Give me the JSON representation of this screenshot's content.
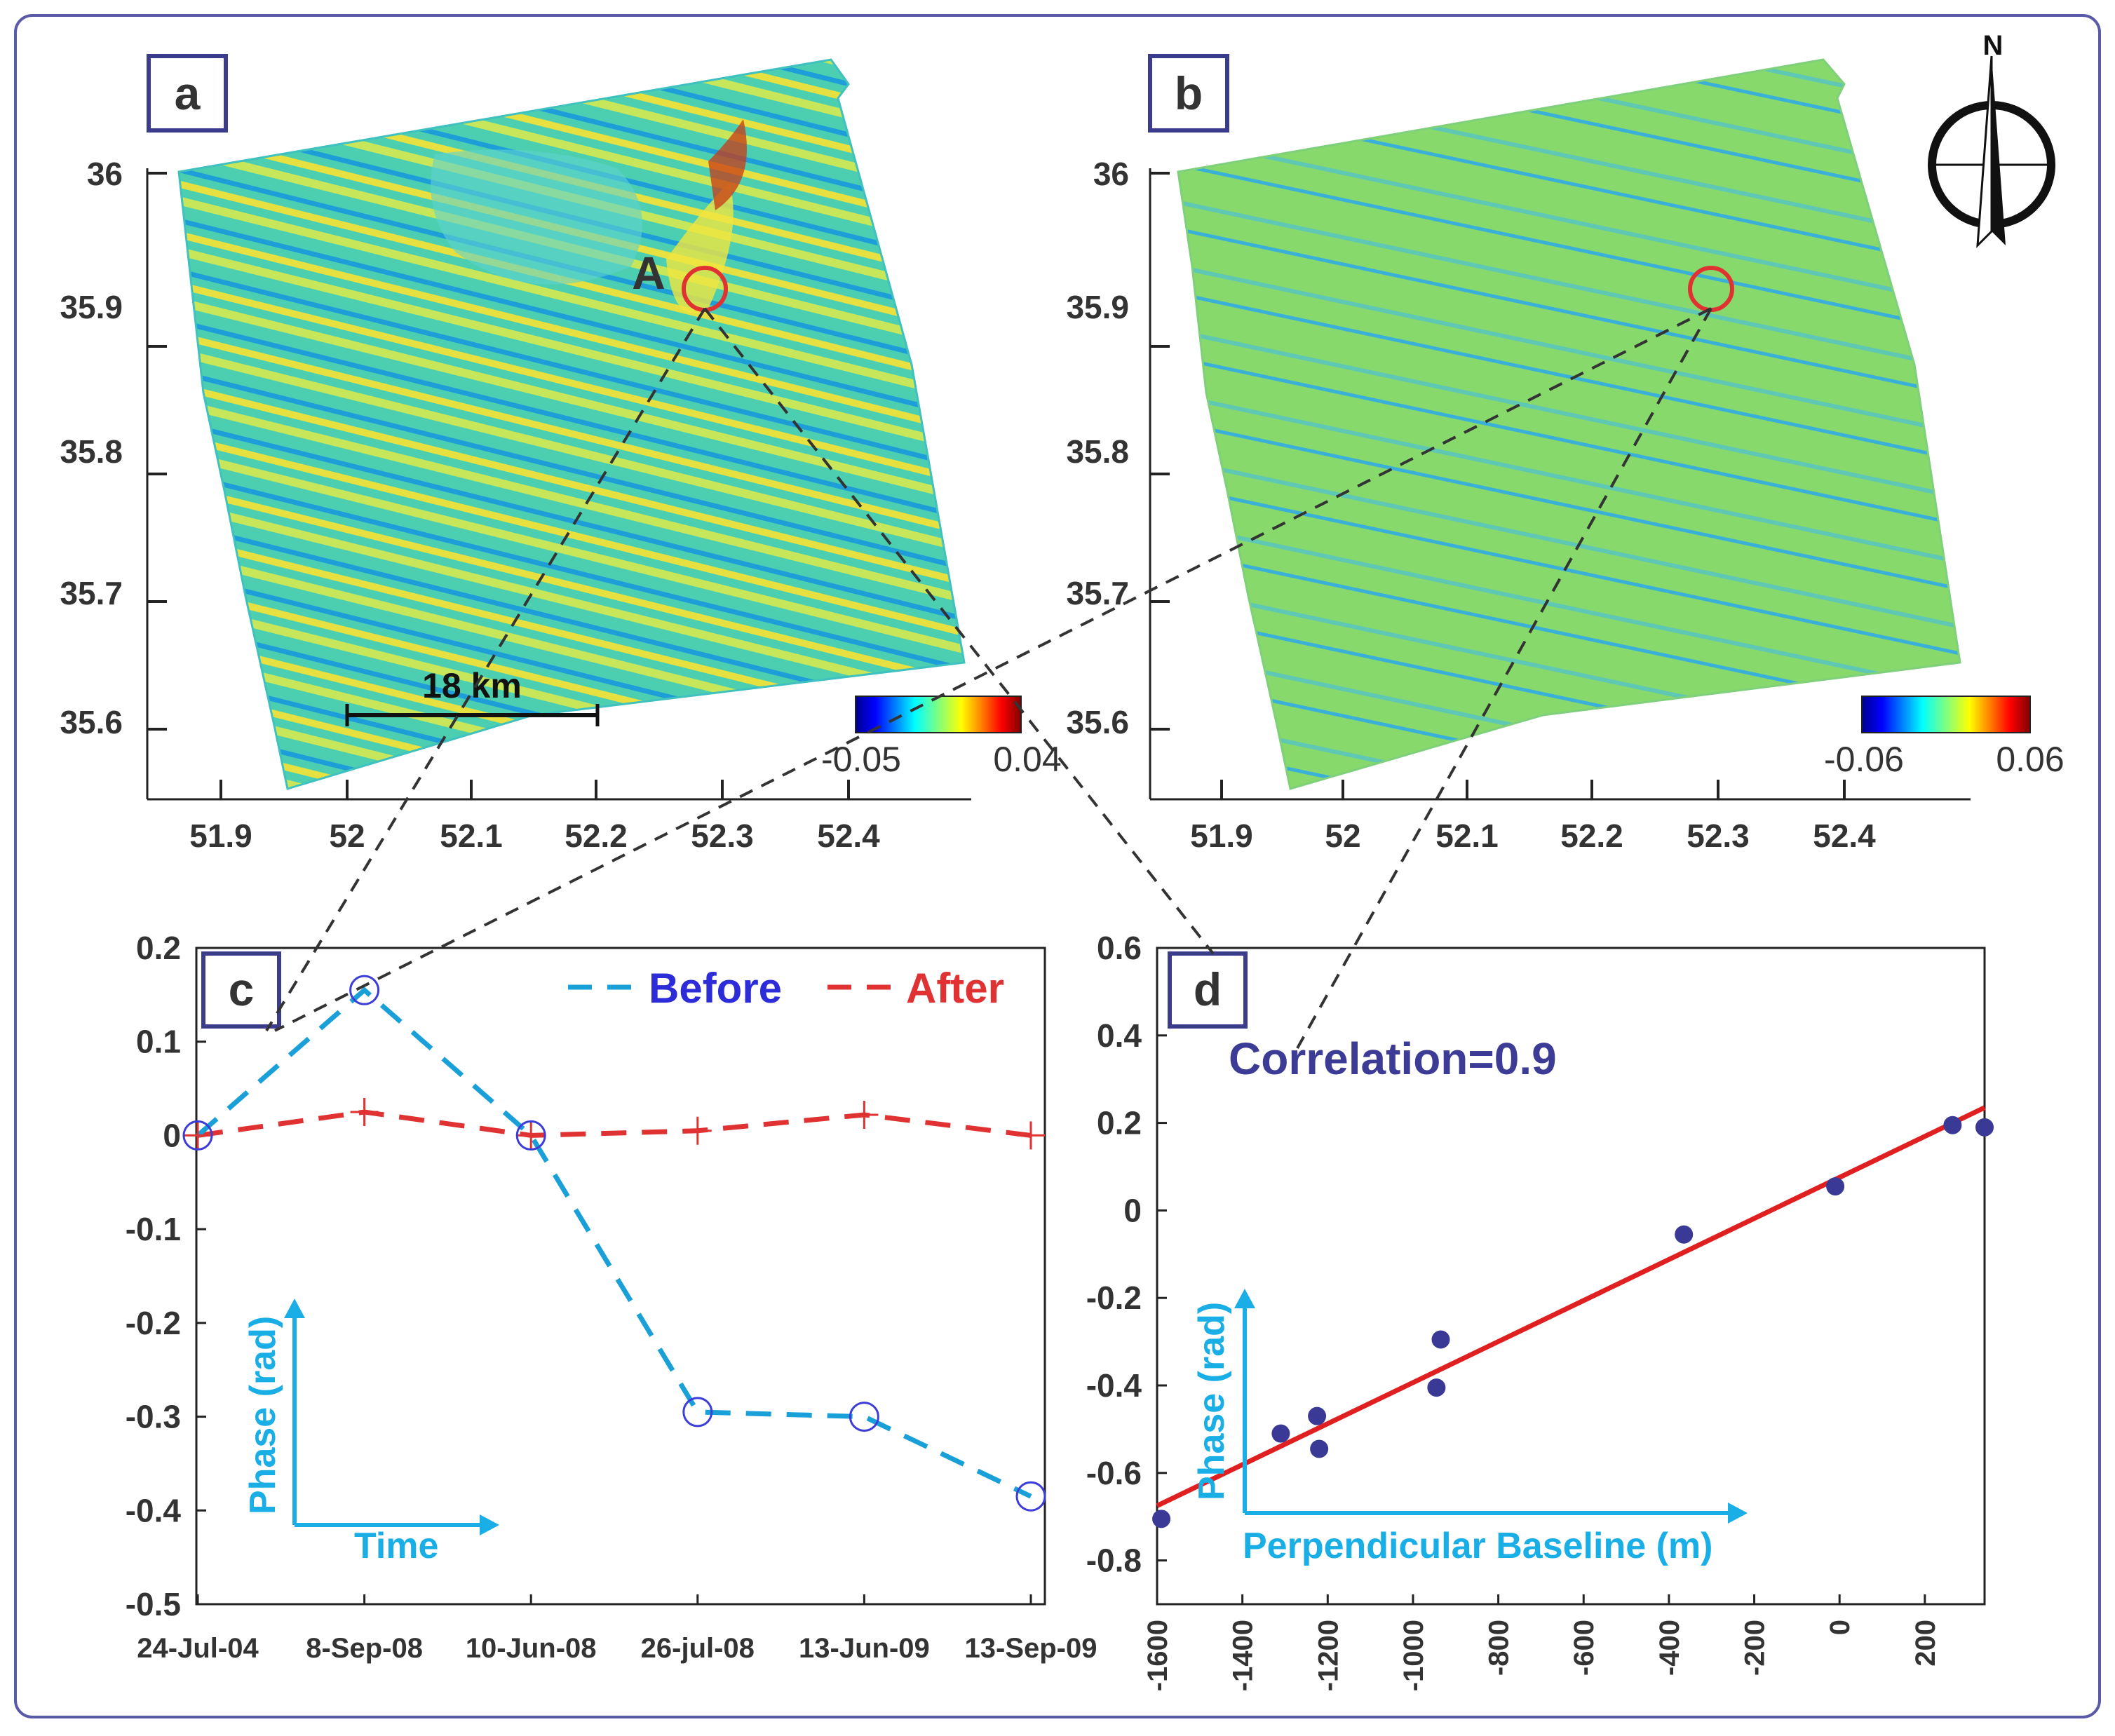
{
  "colors": {
    "frame": "#5a5aa8",
    "label_box": "#3c3c8c",
    "before": "#1aa0d8",
    "after": "#e03232",
    "before_marker": "#3c3cd8",
    "arrow": "#1aaee6",
    "fit_line": "#e02020",
    "scatter": "#3a3a96",
    "correlation_text": "#3c3c96",
    "circle": "#e03232"
  },
  "map_a": {
    "panel_label": "a",
    "point_label": "A",
    "lat_ticks": [
      "36",
      "35.9",
      "35.8",
      "35.7",
      "35.6"
    ],
    "lon_ticks": [
      "51.9",
      "52",
      "52.1",
      "52.2",
      "52.3",
      "52.4"
    ],
    "scale_bar": "18 km",
    "colorbar": {
      "min": "-0.05",
      "max": "0.04"
    }
  },
  "map_b": {
    "panel_label": "b",
    "lat_ticks": [
      "36",
      "35.9",
      "35.8",
      "35.7",
      "35.6"
    ],
    "lon_ticks": [
      "51.9",
      "52",
      "52.1",
      "52.2",
      "52.3",
      "52.4"
    ],
    "colorbar": {
      "min": "-0.06",
      "max": "0.06"
    },
    "north_label": "N"
  },
  "chart_data": [
    {
      "type": "line",
      "panel_label": "c",
      "categories": [
        "24-Jul-04",
        "8-Sep-08",
        "10-Jun-08",
        "26-jul-08",
        "13-Jun-09",
        "13-Sep-09"
      ],
      "series": [
        {
          "name": "Before",
          "values": [
            0,
            0.155,
            0,
            -0.295,
            -0.3,
            -0.385
          ]
        },
        {
          "name": "After",
          "values": [
            0,
            0.025,
            0,
            0.005,
            0.022,
            0
          ]
        }
      ],
      "ylim": [
        -0.5,
        0.2
      ],
      "yticks": [
        "0.2",
        "0.1",
        "0",
        "-0.1",
        "-0.2",
        "-0.3",
        "-0.4",
        "-0.5"
      ],
      "ylabel": "Phase (rad)",
      "xlabel": "Time"
    },
    {
      "type": "scatter",
      "panel_label": "d",
      "x": [
        -1590,
        -1310,
        -1225,
        -1220,
        -945,
        -935,
        -365,
        -10,
        265,
        340
      ],
      "y": [
        -0.705,
        -0.51,
        -0.47,
        -0.545,
        -0.405,
        -0.295,
        -0.055,
        0.055,
        0.195,
        0.19
      ],
      "fit": {
        "x": [
          -1600,
          340
        ],
        "y": [
          -0.675,
          0.235
        ]
      },
      "annotation": "Correlation=0.9",
      "xlim": [
        -1600,
        340
      ],
      "ylim": [
        -0.9,
        0.6
      ],
      "xticks": [
        "-1600",
        "-1400",
        "-1200",
        "-1000",
        "-800",
        "-600",
        "-400",
        "-200",
        "0",
        "200"
      ],
      "yticks": [
        "0.6",
        "0.4",
        "0.2",
        "0",
        "-0.2",
        "-0.4",
        "-0.6",
        "-0.8"
      ],
      "ylabel": "Phase (rad)",
      "xlabel": "Perpendicular Baseline (m)"
    }
  ]
}
